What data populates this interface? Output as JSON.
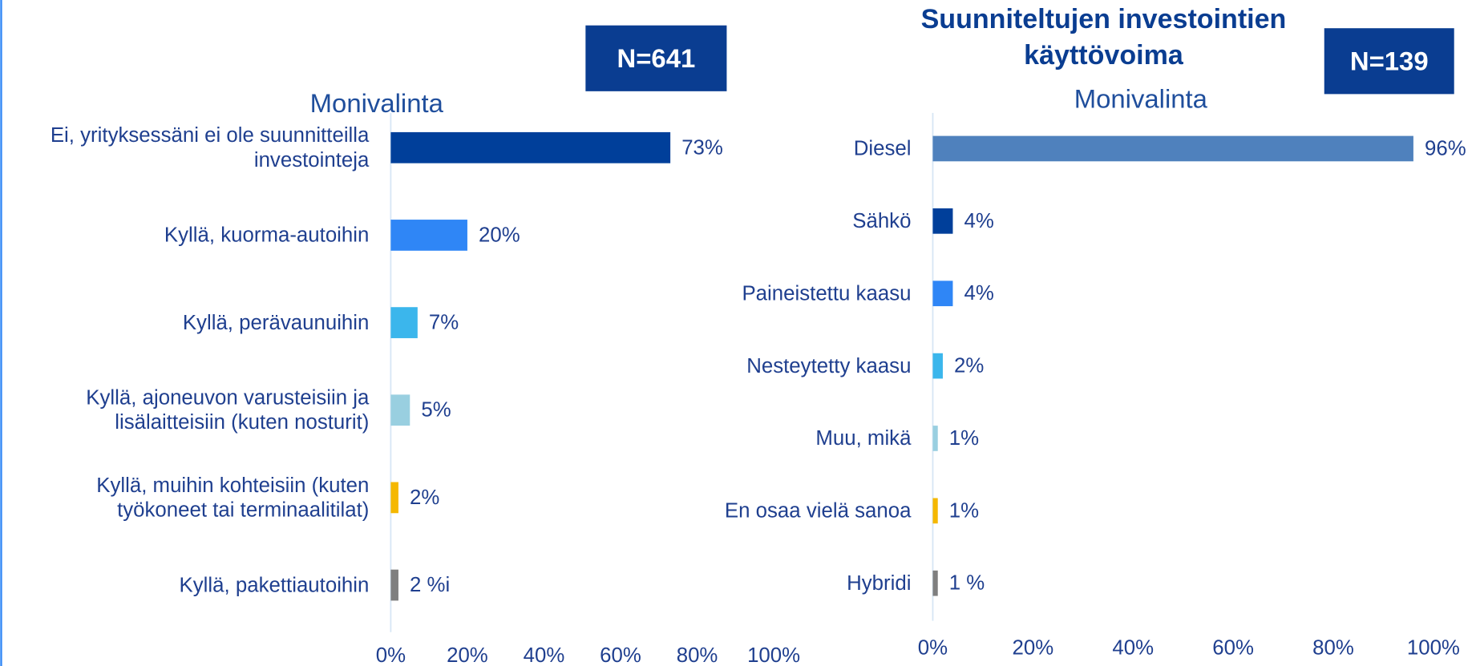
{
  "chart_data": [
    {
      "type": "barh",
      "subtitle": "Monivalinta",
      "badge": "N=641",
      "categories": [
        "Ei, yrityksessäni ei ole suunnitteilla investointeja",
        "Kyllä, kuorma-autoihin",
        "Kyllä, perävaunuihin",
        "Kyllä, ajoneuvon varusteisiin ja lisälaitteisiin (kuten nosturit)",
        "Kyllä, muihin kohteisiin (kuten työkoneet tai terminaalitilat)",
        "Kyllä, pakettiautoihin"
      ],
      "values": [
        73,
        20,
        7,
        5,
        2,
        2
      ],
      "value_labels": [
        "73%",
        "20%",
        "7%",
        "5%",
        "2%",
        "2 %i"
      ],
      "colors": [
        "#003f9a",
        "#2f86f6",
        "#3bb6ec",
        "#99cfe0",
        "#f5b800",
        "#7f7f7f"
      ],
      "xlim": [
        0,
        100
      ],
      "xticks": [
        {
          "value": 0,
          "label": "0%"
        },
        {
          "value": 20,
          "label": "20%"
        },
        {
          "value": 40,
          "label": "40%"
        },
        {
          "value": 60,
          "label": "60%"
        },
        {
          "value": 80,
          "label": "80%"
        },
        {
          "value": 100,
          "label": "100%"
        }
      ]
    },
    {
      "type": "barh",
      "title": "Suunniteltujen investointien käyttövoima",
      "subtitle": "Monivalinta",
      "badge": "N=139",
      "categories": [
        "Diesel",
        "Sähkö",
        "Paineistettu kaasu",
        "Nesteytetty kaasu",
        "Muu, mikä",
        "En osaa vielä sanoa",
        "Hybridi"
      ],
      "values": [
        96,
        4,
        4,
        2,
        1,
        1,
        1
      ],
      "value_labels": [
        "96%",
        "4%",
        "4%",
        "2%",
        "1%",
        "1%",
        "1 %"
      ],
      "colors": [
        "#4f81bd",
        "#003f9a",
        "#2f86f6",
        "#3bb6ec",
        "#99cfe0",
        "#f5b800",
        "#7f7f7f"
      ],
      "xlim": [
        0,
        100
      ],
      "xticks": [
        {
          "value": 0,
          "label": "0%"
        },
        {
          "value": 20,
          "label": "20%"
        },
        {
          "value": 40,
          "label": "40%"
        },
        {
          "value": 60,
          "label": "60%"
        },
        {
          "value": 80,
          "label": "80%"
        },
        {
          "value": 100,
          "label": "100%"
        }
      ]
    }
  ]
}
